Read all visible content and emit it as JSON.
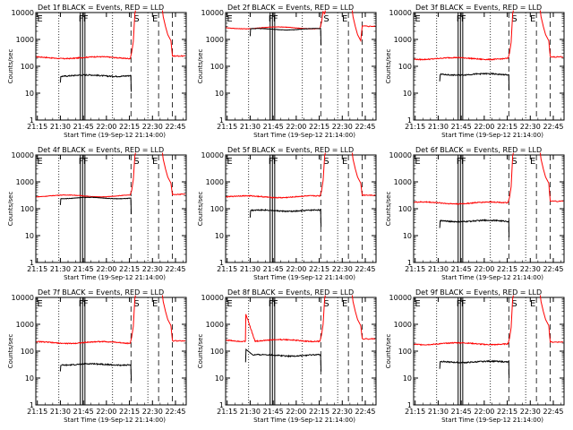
{
  "chart_data": {
    "type": "line",
    "time_ticks": [
      "21:15",
      "21:30",
      "21:45",
      "22:00",
      "22:15",
      "22:30",
      "22:45"
    ],
    "time_ticks_min": [
      15,
      30,
      45,
      60,
      75,
      90,
      105
    ],
    "x_range_min": [
      14,
      112
    ],
    "ylim": [
      1,
      10000
    ],
    "y_scale": "log",
    "y_ticks": [
      {
        "value": 1,
        "label": "1"
      },
      {
        "value": 10,
        "label": "10"
      },
      {
        "value": 100,
        "label": "100"
      },
      {
        "value": 1000,
        "label": "1000"
      },
      {
        "value": 10000,
        "label": "10000"
      }
    ],
    "ylabel": "Counts/sec",
    "xlabel": "Start Time (19-Sep-12 21:14:00)",
    "colors": {
      "events": "#000000",
      "lld": "#ff0000"
    },
    "markers": {
      "dotted_min": [
        29,
        64,
        87
      ],
      "solid_min": [
        43,
        44.5,
        46
      ],
      "dashed_min": [
        76,
        94,
        103
      ],
      "labels": [
        {
          "text": "E",
          "at_min": 16
        },
        {
          "text": "F",
          "at_min": 43
        },
        {
          "text": "F",
          "at_min": 46
        },
        {
          "text": "S",
          "at_min": 79
        },
        {
          "text": "E",
          "at_min": 91
        }
      ]
    },
    "panels": [
      {
        "title": "Det 1f  BLACK = Events, RED = LLD",
        "events": {
          "start": 30,
          "end": 76,
          "level": 45,
          "ripple": 0.05
        },
        "lld": {
          "level": 210,
          "ripple": 0.04
        }
      },
      {
        "title": "Det 2f  BLACK = Events, RED = LLD",
        "events": {
          "start": 30,
          "end": 76,
          "level": 2400,
          "ripple": 0.02
        },
        "lld": {
          "level": 2700,
          "ripple": 0.02
        }
      },
      {
        "title": "Det 3f  BLACK = Events, RED = LLD",
        "events": {
          "start": 31,
          "end": 76,
          "level": 50,
          "ripple": 0.05
        },
        "lld": {
          "level": 195,
          "ripple": 0.04
        }
      },
      {
        "title": "Det 4f  BLACK = Events, RED = LLD",
        "events": {
          "start": 30,
          "end": 76,
          "level": 250,
          "ripple": 0.02
        },
        "lld": {
          "level": 300,
          "ripple": 0.02
        }
      },
      {
        "title": "Det 5f  BLACK = Events, RED = LLD",
        "events": {
          "start": 30,
          "end": 76,
          "level": 85,
          "ripple": 0.05
        },
        "lld": {
          "level": 280,
          "ripple": 0.04
        }
      },
      {
        "title": "Det 6f  BLACK = Events, RED = LLD",
        "events": {
          "start": 31,
          "end": 76,
          "level": 35,
          "ripple": 0.05
        },
        "lld": {
          "level": 165,
          "ripple": 0.04
        }
      },
      {
        "title": "Det 7f  BLACK = Events, RED = LLD",
        "events": {
          "start": 30,
          "end": 76,
          "level": 32,
          "ripple": 0.05
        },
        "lld": {
          "level": 210,
          "ripple": 0.04
        }
      },
      {
        "title": "Det 8f  BLACK = Events, RED = LLD",
        "events": {
          "start": 27,
          "end": 76,
          "level": 70,
          "ripple": 0.05,
          "spike": 120
        },
        "lld": {
          "level": 250,
          "ripple": 0.04,
          "spike": 2600
        }
      },
      {
        "title": "Det 9f  BLACK = Events, RED = LLD",
        "events": {
          "start": 31,
          "end": 76,
          "level": 40,
          "ripple": 0.05
        },
        "lld": {
          "level": 190,
          "ripple": 0.04
        }
      }
    ]
  }
}
